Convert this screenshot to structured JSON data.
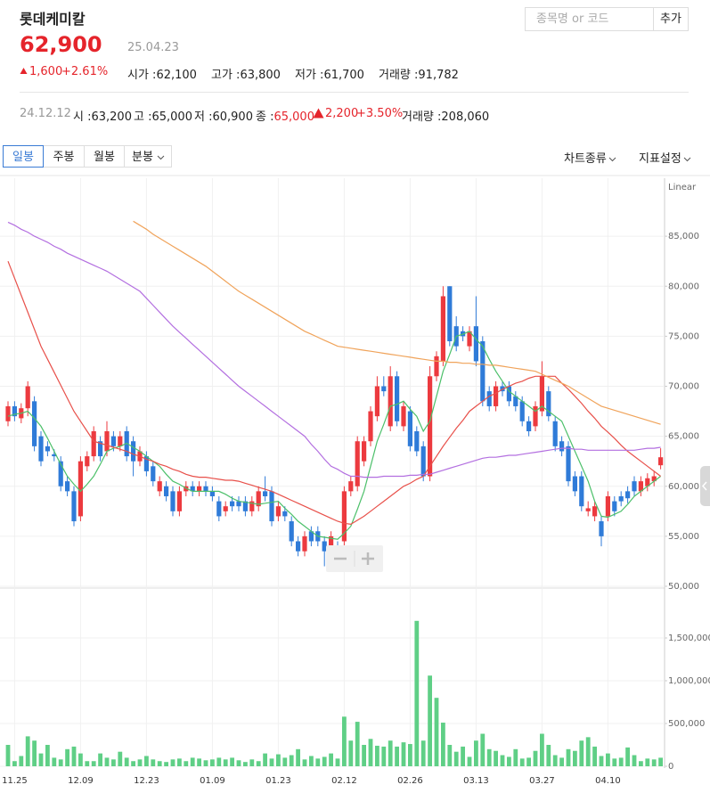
{
  "header": {
    "name": "롯데케미칼",
    "price": "62,900",
    "date": "25.04.23",
    "change": "1,600",
    "change_pct": "+2.61%",
    "stats": [
      {
        "label": "시가 :",
        "value": "62,100"
      },
      {
        "label": "고가 :",
        "value": "63,800"
      },
      {
        "label": "저가 :",
        "value": "61,700"
      },
      {
        "label": "거래량 :",
        "value": "91,782"
      }
    ]
  },
  "search": {
    "placeholder": "종목명 or 코드",
    "button": "추가"
  },
  "selected_day": {
    "date": "24.12.12",
    "items": [
      {
        "label": "시 :",
        "value": "63,200"
      },
      {
        "label": "고 :",
        "value": "65,000"
      },
      {
        "label": "저 :",
        "value": "60,900"
      },
      {
        "label": "종 :",
        "value": "65,000"
      }
    ],
    "change": "2,200",
    "change_pct": "+3.50%",
    "volume": {
      "label": "거래량 :",
      "value": "208,060"
    }
  },
  "tabs": [
    "일봉",
    "주봉",
    "월봉",
    "분봉"
  ],
  "menus": [
    "차트종류",
    "지표설정"
  ],
  "chart_data": [
    {
      "type": "candlestick",
      "scale_label": "Linear",
      "up_color": "#ec3a3f",
      "down_color": "#2f7bd8",
      "grid": true,
      "categories": [
        null,
        "11.25",
        null,
        null,
        null,
        null,
        null,
        null,
        null,
        null,
        null,
        "12.09",
        null,
        null,
        null,
        null,
        null,
        null,
        null,
        null,
        null,
        "12.23",
        null,
        null,
        null,
        null,
        null,
        null,
        null,
        null,
        null,
        "01.09",
        null,
        null,
        null,
        null,
        null,
        null,
        null,
        null,
        null,
        "01.23",
        null,
        null,
        null,
        null,
        null,
        null,
        null,
        null,
        null,
        "02.12",
        null,
        null,
        null,
        null,
        null,
        null,
        null,
        null,
        null,
        "02.26",
        null,
        null,
        null,
        null,
        null,
        null,
        null,
        null,
        null,
        "03.13",
        null,
        null,
        null,
        null,
        null,
        null,
        null,
        null,
        null,
        "03.27",
        null,
        null,
        null,
        null,
        null,
        null,
        null,
        null,
        null,
        "04.10",
        null,
        null,
        null,
        null,
        null,
        null,
        null,
        null
      ],
      "open": [
        66500,
        68000,
        66800,
        67800,
        68500,
        65000,
        64000,
        63200,
        62500,
        60500,
        59500,
        57000,
        62000,
        63000,
        64500,
        63500,
        65000,
        64000,
        65500,
        64500,
        62500,
        63000,
        62000,
        59500,
        60000,
        59500,
        57500,
        59500,
        60000,
        59500,
        60000,
        59500,
        58500,
        57500,
        58500,
        58500,
        58500,
        57500,
        58000,
        59500,
        59500,
        57000,
        57500,
        56500,
        54500,
        53500,
        55500,
        55500,
        54500,
        53500,
        54000,
        54500,
        59500,
        60000,
        62500,
        64500,
        67000,
        70000,
        66000,
        71000,
        66000,
        67500,
        65500,
        64000,
        61000,
        71000,
        72500,
        80000,
        76000,
        75500,
        74000,
        76000,
        74500,
        69500,
        68000,
        70000,
        70000,
        69000,
        68500,
        66500,
        66000,
        67500,
        69500,
        66500,
        64500,
        64000,
        61000,
        61000,
        57500,
        57000,
        56500,
        57000,
        58500,
        59000,
        59500,
        60500,
        59500,
        60000,
        60500,
        62100
      ],
      "high": [
        68500,
        68500,
        68300,
        70500,
        69000,
        65500,
        64500,
        63700,
        63000,
        61000,
        60000,
        63000,
        63500,
        66000,
        65000,
        66500,
        65500,
        65500,
        66000,
        65000,
        64000,
        63500,
        62500,
        61000,
        60500,
        60000,
        60000,
        60500,
        60500,
        60500,
        60500,
        60000,
        59000,
        58500,
        59000,
        59000,
        59000,
        59000,
        60000,
        61000,
        60000,
        58500,
        58000,
        57000,
        55000,
        55500,
        56000,
        56000,
        55000,
        55500,
        54500,
        60000,
        61000,
        65000,
        65000,
        68000,
        71000,
        71000,
        72000,
        71500,
        68500,
        68000,
        66000,
        64500,
        72000,
        73500,
        80000,
        80000,
        77000,
        76000,
        76000,
        79000,
        75000,
        70000,
        70500,
        70500,
        70500,
        69500,
        69000,
        67000,
        68500,
        72500,
        70000,
        67000,
        65000,
        64500,
        61500,
        61500,
        58500,
        58500,
        57000,
        59500,
        59000,
        59500,
        60000,
        61000,
        61000,
        61300,
        61500,
        63800
      ],
      "low": [
        66000,
        66500,
        66300,
        67000,
        63500,
        62000,
        63000,
        62500,
        59500,
        59000,
        56000,
        56500,
        61500,
        62500,
        62500,
        63000,
        63500,
        63500,
        62500,
        61000,
        62000,
        61000,
        60000,
        59000,
        58500,
        57000,
        57000,
        59000,
        59000,
        59000,
        59000,
        58500,
        56500,
        57000,
        57500,
        57500,
        57000,
        57000,
        57500,
        58500,
        56000,
        56500,
        56500,
        54000,
        53000,
        53000,
        54000,
        54000,
        52000,
        53000,
        52000,
        54000,
        59000,
        59500,
        62000,
        64000,
        66500,
        69000,
        65500,
        66000,
        65500,
        63500,
        63000,
        60500,
        60500,
        70500,
        72000,
        74000,
        73500,
        74500,
        73500,
        72000,
        68000,
        67500,
        67500,
        69000,
        68000,
        67500,
        66000,
        65000,
        65500,
        67000,
        66500,
        63500,
        63000,
        60000,
        59000,
        57500,
        57000,
        56500,
        54000,
        56500,
        57000,
        58000,
        58300,
        59000,
        59000,
        59500,
        60000,
        61700
      ],
      "close": [
        68000,
        67000,
        67800,
        70000,
        64000,
        62500,
        63500,
        63000,
        60000,
        59500,
        56500,
        62500,
        63000,
        65500,
        63000,
        65500,
        64000,
        65000,
        63000,
        62500,
        63500,
        61500,
        60500,
        60500,
        59000,
        57500,
        59500,
        60000,
        59500,
        60000,
        59500,
        59000,
        57000,
        58000,
        58000,
        58000,
        57500,
        58500,
        59500,
        59000,
        56500,
        58000,
        57000,
        54500,
        53500,
        55000,
        54500,
        54500,
        53500,
        55000,
        53500,
        59500,
        60500,
        64500,
        64500,
        67500,
        70000,
        69500,
        71000,
        66500,
        68000,
        64000,
        63500,
        61000,
        71000,
        73000,
        79000,
        74500,
        74000,
        75000,
        75500,
        72500,
        68500,
        68000,
        70000,
        69500,
        68500,
        68000,
        66500,
        65500,
        68000,
        71000,
        67000,
        64000,
        63500,
        60500,
        59500,
        58000,
        57800,
        58000,
        55000,
        59000,
        57500,
        58500,
        58800,
        59500,
        60500,
        60800,
        61000,
        62900
      ],
      "ylim": [
        50000,
        90000
      ],
      "yticks": [
        {
          "value": 50000,
          "label": "50,000"
        },
        {
          "value": 55000,
          "label": "55,000"
        },
        {
          "value": 60000,
          "label": "60,000"
        },
        {
          "value": 65000,
          "label": "65,000"
        },
        {
          "value": 70000,
          "label": "70,000"
        },
        {
          "value": 75000,
          "label": "75,000"
        },
        {
          "value": 80000,
          "label": "80,000"
        },
        {
          "value": 85000,
          "label": "85,000"
        }
      ],
      "lines": [
        {
          "color": "#4cc06a",
          "values": [
            67000,
            67200,
            67300,
            67500,
            66800,
            66000,
            64800,
            63500,
            62200,
            61000,
            60200,
            59500,
            60200,
            61000,
            62200,
            63500,
            63800,
            64000,
            64300,
            63900,
            63500,
            63000,
            62500,
            62000,
            61200,
            60500,
            60200,
            59800,
            59500,
            59500,
            59500,
            59500,
            59500,
            59200,
            58800,
            58500,
            58400,
            58300,
            58200,
            58300,
            58400,
            58500,
            57800,
            57200,
            56500,
            56000,
            55500,
            55000,
            54900,
            54800,
            54700,
            55300,
            56000,
            57700,
            59500,
            62000,
            64500,
            66200,
            68000,
            68200,
            68500,
            67700,
            67000,
            65500,
            66500,
            69000,
            71500,
            73200,
            75000,
            75200,
            75500,
            74700,
            74000,
            72700,
            71500,
            70500,
            69500,
            69000,
            68500,
            68000,
            67500,
            68000,
            67500,
            67000,
            66500,
            65000,
            63500,
            62000,
            60500,
            58500,
            57000,
            56900,
            57200,
            57500,
            58200,
            59000,
            59500,
            60000,
            60500,
            61000
          ]
        },
        {
          "color": "#e8504a",
          "values": [
            82500,
            80800,
            79100,
            77400,
            75700,
            74000,
            72700,
            71400,
            70100,
            68800,
            67500,
            66500,
            65500,
            64500,
            64300,
            64100,
            63900,
            63700,
            63500,
            63200,
            63000,
            62700,
            62500,
            62200,
            62000,
            61700,
            61500,
            61200,
            61000,
            60900,
            60900,
            60800,
            60700,
            60600,
            60600,
            60500,
            60300,
            60100,
            59900,
            59700,
            59500,
            59200,
            58900,
            58600,
            58300,
            58000,
            57700,
            57400,
            57100,
            56800,
            56500,
            56300,
            56200,
            56600,
            57000,
            57500,
            58000,
            58500,
            59000,
            59500,
            60000,
            60300,
            60700,
            61000,
            62000,
            63000,
            64000,
            64900,
            65800,
            66600,
            67500,
            68000,
            68500,
            69000,
            69300,
            69700,
            70000,
            70300,
            70500,
            70800,
            71000,
            71000,
            71000,
            71000,
            70300,
            69700,
            69000,
            68300,
            67500,
            66800,
            66000,
            65400,
            64800,
            64100,
            63500,
            63000,
            62500,
            62000,
            61500,
            61000
          ]
        },
        {
          "color": "#b36fe0",
          "values": [
            86400,
            86100,
            85700,
            85400,
            85000,
            84700,
            84400,
            84000,
            83700,
            83300,
            83000,
            82700,
            82400,
            82100,
            81800,
            81500,
            81100,
            80700,
            80300,
            79900,
            79500,
            78800,
            78100,
            77400,
            76700,
            76000,
            75400,
            74800,
            74200,
            73600,
            73000,
            72400,
            71800,
            71200,
            70600,
            70000,
            69500,
            69000,
            68500,
            68000,
            67500,
            67000,
            66500,
            66000,
            65500,
            65000,
            64200,
            63500,
            62700,
            62000,
            61700,
            61300,
            61000,
            61000,
            60900,
            60900,
            60900,
            61000,
            61000,
            61000,
            61000,
            61100,
            61100,
            61200,
            61200,
            61400,
            61600,
            61800,
            62000,
            62200,
            62400,
            62600,
            62800,
            62900,
            62900,
            63000,
            63100,
            63100,
            63200,
            63300,
            63400,
            63500,
            63600,
            63700,
            63800,
            63800,
            63700,
            63700,
            63600,
            63600,
            63600,
            63600,
            63600,
            63600,
            63600,
            63600,
            63700,
            63800,
            63800,
            63900
          ]
        },
        {
          "color": "#f0a35a",
          "values": [
            null,
            null,
            null,
            null,
            null,
            null,
            null,
            null,
            null,
            null,
            null,
            null,
            null,
            null,
            null,
            null,
            null,
            null,
            null,
            86500,
            86100,
            85700,
            85200,
            84800,
            84400,
            84000,
            83600,
            83200,
            82800,
            82400,
            82000,
            81500,
            81000,
            80500,
            80000,
            79500,
            79100,
            78700,
            78300,
            77900,
            77500,
            77100,
            76700,
            76300,
            75900,
            75500,
            75200,
            74900,
            74600,
            74300,
            74000,
            73900,
            73800,
            73700,
            73600,
            73500,
            73400,
            73300,
            73200,
            73100,
            73000,
            72900,
            72800,
            72700,
            72600,
            72500,
            72500,
            72400,
            72400,
            72300,
            72300,
            72200,
            72200,
            72100,
            72100,
            72000,
            71900,
            71800,
            71700,
            71600,
            71500,
            71200,
            70900,
            70600,
            70300,
            70000,
            69600,
            69200,
            68800,
            68400,
            68000,
            67800,
            67600,
            67400,
            67200,
            67000,
            66800,
            66600,
            66400,
            66200
          ]
        }
      ]
    },
    {
      "type": "bar",
      "color": "#5fcf86",
      "values": [
        250000,
        60000,
        120000,
        350000,
        300000,
        150000,
        250000,
        100000,
        80000,
        200000,
        230000,
        150000,
        60000,
        60000,
        150000,
        100000,
        80000,
        170000,
        100000,
        60000,
        80000,
        120000,
        80000,
        60000,
        50000,
        80000,
        90000,
        60000,
        100000,
        90000,
        70000,
        80000,
        100000,
        80000,
        100000,
        70000,
        50000,
        80000,
        60000,
        150000,
        90000,
        140000,
        100000,
        130000,
        200000,
        80000,
        120000,
        90000,
        110000,
        150000,
        90000,
        580000,
        300000,
        520000,
        250000,
        320000,
        240000,
        230000,
        300000,
        230000,
        280000,
        260000,
        1700000,
        300000,
        1060000,
        800000,
        510000,
        250000,
        170000,
        230000,
        110000,
        300000,
        380000,
        200000,
        180000,
        130000,
        110000,
        200000,
        90000,
        100000,
        180000,
        380000,
        250000,
        130000,
        100000,
        200000,
        180000,
        300000,
        340000,
        230000,
        120000,
        150000,
        90000,
        100000,
        220000,
        130000,
        60000,
        90000,
        80000,
        100000
      ],
      "ylim": [
        0,
        2000000
      ],
      "yticks": [
        0,
        {
          "value": 500000,
          "label": "500,000"
        },
        {
          "value": 1000000,
          "label": "1,000,000"
        },
        {
          "value": 1500000,
          "label": "1,500,000"
        }
      ]
    }
  ]
}
